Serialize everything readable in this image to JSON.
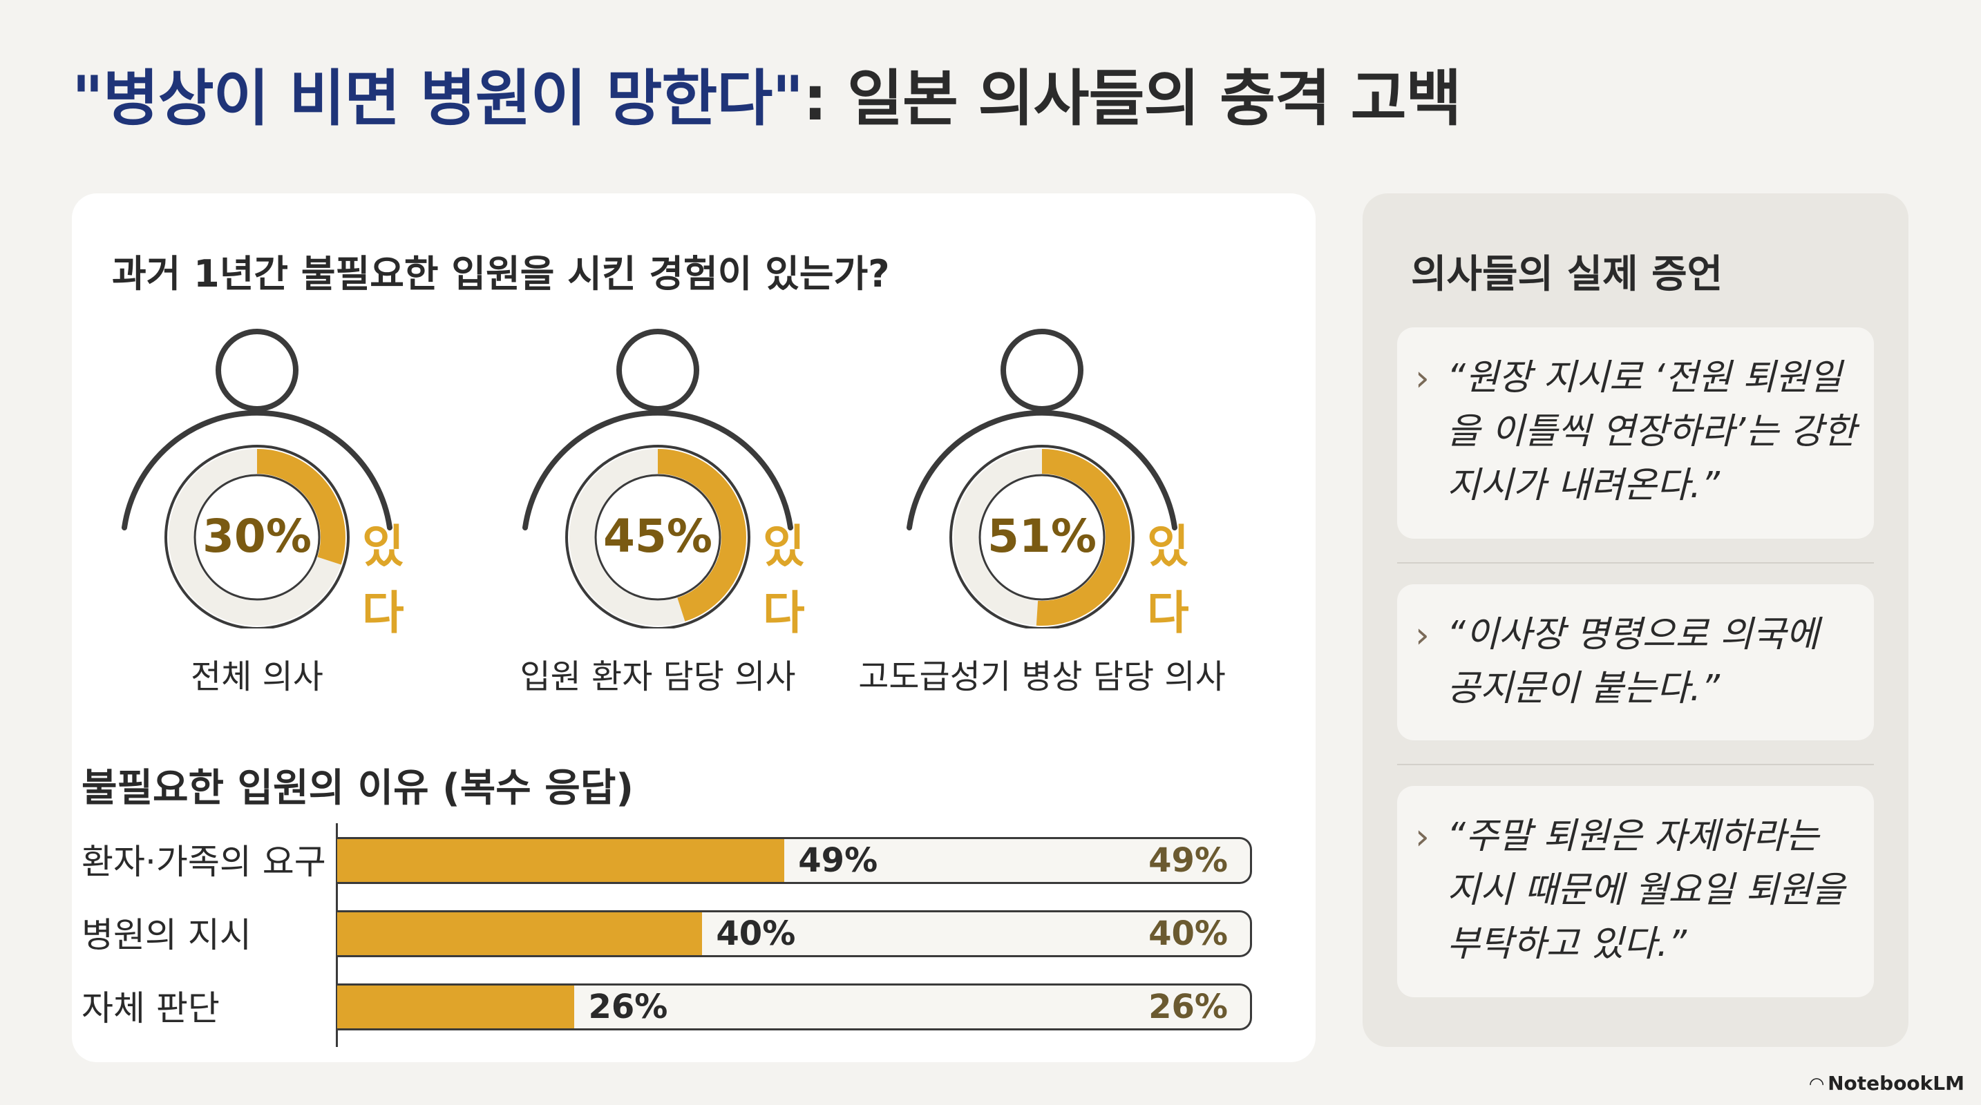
{
  "title": {
    "quoted": "\"병상이 비면 병원이 망한다\"",
    "rest": ": 일본 의사들의 충격 고백"
  },
  "colors": {
    "accent": "#e0a42a",
    "title_blue": "#1f3478",
    "ring_track": "#f1efe9",
    "outline": "#3a3a3a"
  },
  "chart_data": [
    {
      "type": "pie",
      "title": "과거 1년간 불필요한 입원을 시킨 경험이 있는가?",
      "series": [
        {
          "name": "전체 의사",
          "value": 30,
          "value_label": "30%",
          "answer": "있다"
        },
        {
          "name": "입원 환자 담당 의사",
          "value": 45,
          "value_label": "45%",
          "answer": "있다"
        },
        {
          "name": "고도급성기 병상 담당 의사",
          "value": 51,
          "value_label": "51%",
          "answer": "있다"
        }
      ]
    },
    {
      "type": "bar",
      "orientation": "horizontal",
      "title": "불필요한 입원의 이유 (복수 응답)",
      "categories": [
        "환자·가족의 요구",
        "병원의 지시",
        "자체 판단"
      ],
      "values": [
        49,
        40,
        26
      ],
      "value_labels": [
        "49%",
        "40%",
        "26%"
      ],
      "xlim": [
        0,
        100
      ]
    }
  ],
  "testimony": {
    "title": "의사들의 실제 증언",
    "quotes": [
      "“원장 지시로 ‘전원 퇴원일을 이틀씩 연장하라’는 강한 지시가 내려온다.”",
      "“이사장 명령으로 의국에 공지문이 붙는다.”",
      "“주말 퇴원은 자제하라는 지시 때문에 월요일 퇴원을 부탁하고 있다.”"
    ]
  },
  "brand": {
    "icon": "notebooklm-logo-icon",
    "label": "NotebookLM"
  }
}
